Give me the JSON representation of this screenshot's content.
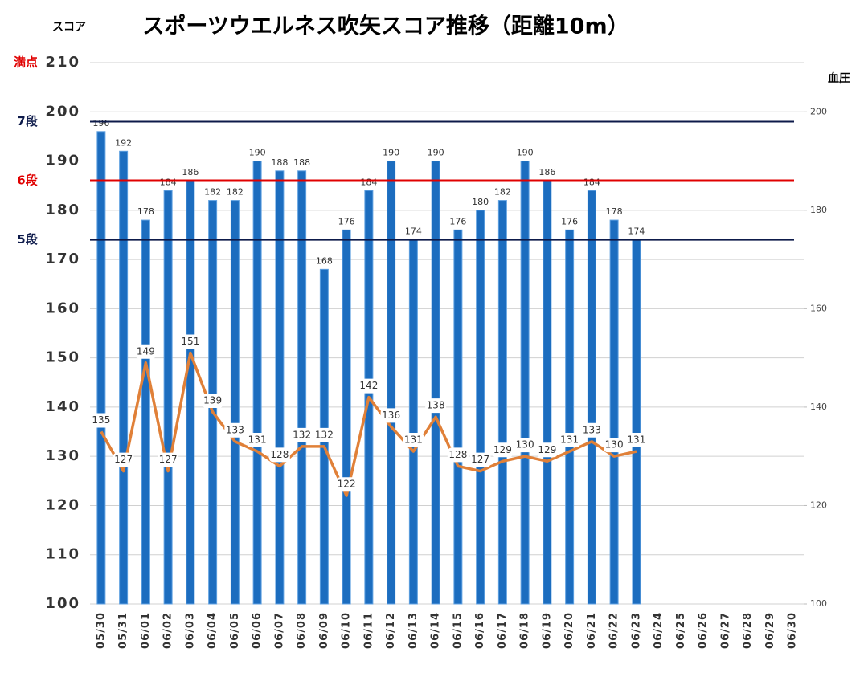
{
  "chart_data": {
    "type": "bar",
    "title": "スポーツウエルネス吹矢スコア推移（距離10m）",
    "y_label": "スコア",
    "y2_label": "血圧",
    "categories": [
      "05/30",
      "05/31",
      "06/01",
      "06/02",
      "06/03",
      "06/04",
      "06/05",
      "06/06",
      "06/07",
      "06/08",
      "06/09",
      "06/10",
      "06/11",
      "06/12",
      "06/13",
      "06/14",
      "06/15",
      "06/16",
      "06/17",
      "06/18",
      "06/19",
      "06/20",
      "06/21",
      "06/22",
      "06/23",
      "06/24",
      "06/25",
      "06/26",
      "06/27",
      "06/28",
      "06/29",
      "06/30"
    ],
    "series": [
      {
        "type": "bar",
        "color": "#1c6dbf",
        "values": [
          196,
          192,
          178,
          184,
          186,
          182,
          182,
          190,
          188,
          188,
          168,
          176,
          184,
          190,
          174,
          190,
          176,
          180,
          182,
          190,
          186,
          176,
          184,
          178,
          174,
          null,
          null,
          null,
          null,
          null,
          null,
          null
        ]
      },
      {
        "type": "line",
        "axis": "y2",
        "color": "#e08038",
        "values": [
          135,
          127,
          149,
          127,
          151,
          139,
          133,
          131,
          128,
          132,
          132,
          122,
          142,
          136,
          131,
          138,
          128,
          127,
          129,
          130,
          129,
          131,
          133,
          130,
          131,
          null,
          null,
          null,
          null,
          null,
          null,
          null
        ]
      }
    ],
    "ylim": [
      100,
      210
    ],
    "yticks": [
      100,
      110,
      120,
      130,
      140,
      150,
      160,
      170,
      180,
      190,
      200,
      210
    ],
    "y2lim": [
      100,
      210
    ],
    "y2ticks": [
      100,
      120,
      140,
      160,
      180,
      200
    ],
    "grid": true,
    "reference_lines": [
      {
        "label": "7段",
        "value": 198,
        "color": "#0d1a4a"
      },
      {
        "label": "6段",
        "value": 186,
        "color": "#e00000"
      },
      {
        "label": "5段",
        "value": 174,
        "color": "#0d1a4a"
      }
    ],
    "max_label": {
      "label": "満点",
      "value": 210,
      "color": "#e00000"
    }
  }
}
